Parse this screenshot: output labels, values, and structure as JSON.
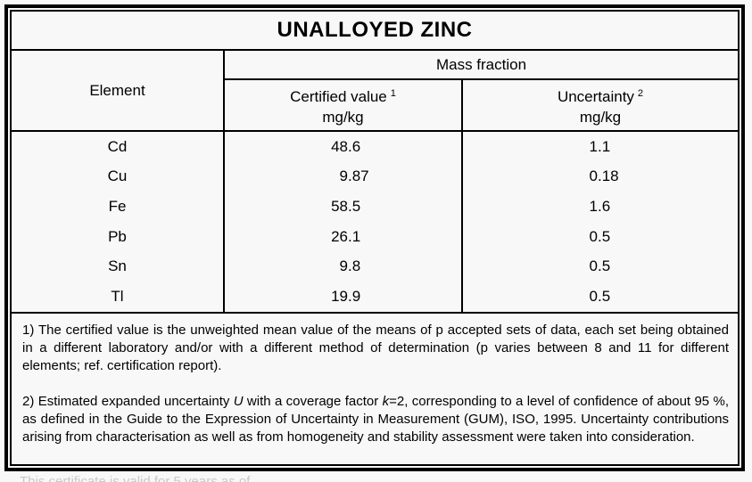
{
  "title": "UNALLOYED ZINC",
  "table": {
    "element_header": "Element",
    "mass_fraction_header": "Mass fraction",
    "certified_header": {
      "label": "Certified value",
      "footnote_ref": "1",
      "unit": "mg/kg"
    },
    "uncertainty_header": {
      "label": "Uncertainty",
      "footnote_ref": "2",
      "unit": "mg/kg"
    },
    "rows": [
      {
        "element": "Cd",
        "certified_value": "48.6",
        "uncertainty": "1.1"
      },
      {
        "element": "Cu",
        "certified_value": "9.87",
        "uncertainty": "0.18"
      },
      {
        "element": "Fe",
        "certified_value": "58.5",
        "uncertainty": "1.6"
      },
      {
        "element": "Pb",
        "certified_value": "26.1",
        "uncertainty": "0.5"
      },
      {
        "element": "Sn",
        "certified_value": "9.8",
        "uncertainty": "0.5"
      },
      {
        "element": "Tl",
        "certified_value": "19.9",
        "uncertainty": "0.5"
      }
    ]
  },
  "footnotes": {
    "note1": "1) The certified value is the unweighted mean value of the means of p accepted sets of data, each set being obtained in a different laboratory and/or with a different method of determination (p varies between 8 and 11 for different elements; ref. certification report).",
    "note2_seg1": "2) Estimated expanded uncertainty ",
    "note2_italic1": "U",
    "note2_seg2": " with a coverage factor ",
    "note2_italic2": "k",
    "note2_seg3": "=2, corresponding to a level of confidence of about 95 %, as defined in the Guide to the Expression of Uncertainty in Measurement (GUM), ISO, 1995. Uncertainty contributions arising from characterisation as well as from homogeneity and stability assessment were taken into consideration."
  },
  "bottom_clipped_text": "This certificate is valid for 5 years as of",
  "colors": {
    "background": "#f8f8f8",
    "border": "#000000",
    "text": "#000000",
    "faint_text": "#c6c9cc"
  }
}
